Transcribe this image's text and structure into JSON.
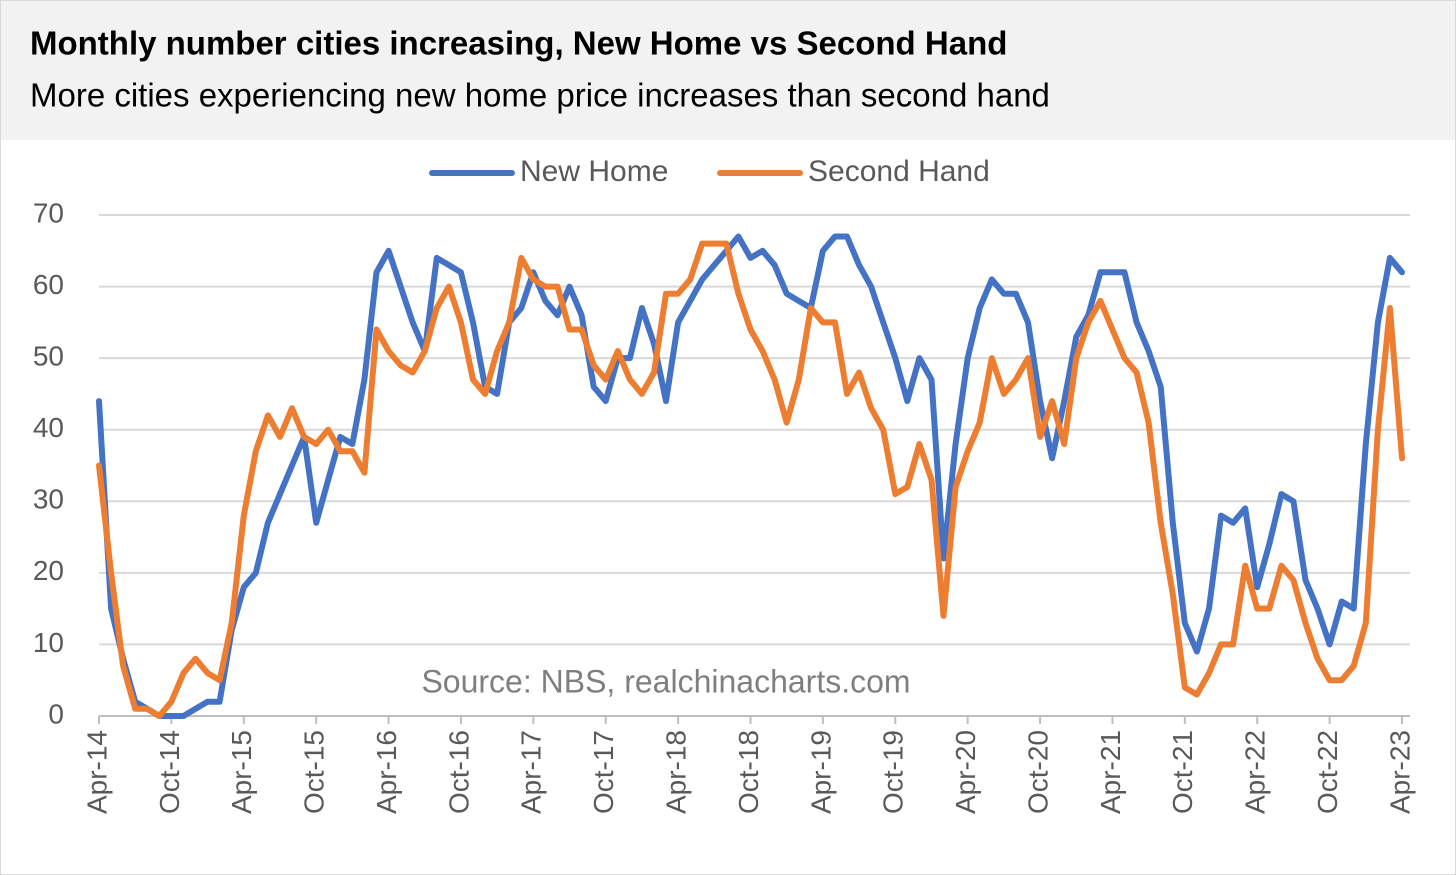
{
  "chart_data": {
    "type": "line",
    "title": "Monthly number cities increasing, New Home vs Second Hand",
    "subtitle": "More cities experiencing new home price increases than second hand",
    "annotation": "Source: NBS, realchinacharts.com",
    "categories": [
      "Apr-14",
      null,
      null,
      null,
      null,
      null,
      "Oct-14",
      null,
      null,
      null,
      null,
      null,
      "Apr-15",
      null,
      null,
      null,
      null,
      null,
      "Oct-15",
      null,
      null,
      null,
      null,
      null,
      "Apr-16",
      null,
      null,
      null,
      null,
      null,
      "Oct-16",
      null,
      null,
      null,
      null,
      null,
      "Apr-17",
      null,
      null,
      null,
      null,
      null,
      "Oct-17",
      null,
      null,
      null,
      null,
      null,
      "Apr-18",
      null,
      null,
      null,
      null,
      null,
      "Oct-18",
      null,
      null,
      null,
      null,
      null,
      "Apr-19",
      null,
      null,
      null,
      null,
      null,
      "Oct-19",
      null,
      null,
      null,
      null,
      null,
      "Apr-20",
      null,
      null,
      null,
      null,
      null,
      "Oct-20",
      null,
      null,
      null,
      null,
      null,
      "Apr-21",
      null,
      null,
      null,
      null,
      null,
      "Oct-21",
      null,
      null,
      null,
      null,
      null,
      "Apr-22",
      null,
      null,
      null,
      null,
      null,
      "Oct-22",
      null,
      null,
      null,
      null,
      null,
      "Apr-23"
    ],
    "series": [
      {
        "name": "New Home",
        "color": "#4472c4",
        "values": [
          44,
          15,
          8,
          2,
          1,
          0,
          0,
          0,
          1,
          2,
          2,
          12,
          18,
          20,
          27,
          31,
          35,
          39,
          27,
          33,
          39,
          38,
          47,
          62,
          65,
          60,
          55,
          51,
          64,
          63,
          62,
          55,
          46,
          45,
          55,
          57,
          62,
          58,
          56,
          60,
          56,
          46,
          44,
          50,
          50,
          57,
          52,
          44,
          55,
          58,
          61,
          63,
          65,
          67,
          64,
          65,
          63,
          59,
          58,
          57,
          65,
          67,
          67,
          63,
          60,
          55,
          50,
          44,
          50,
          47,
          22,
          38,
          50,
          57,
          61,
          59,
          59,
          55,
          44,
          36,
          44,
          53,
          56,
          62,
          62,
          62,
          55,
          51,
          46,
          27,
          13,
          9,
          15,
          28,
          27,
          29,
          18,
          24,
          31,
          30,
          19,
          15,
          10,
          16,
          15,
          38,
          55,
          64,
          62
        ]
      },
      {
        "name": "Second Hand",
        "color": "#ed7d31",
        "values": [
          35,
          20,
          7,
          1,
          1,
          0,
          2,
          6,
          8,
          6,
          5,
          13,
          28,
          37,
          42,
          39,
          43,
          39,
          38,
          40,
          37,
          37,
          34,
          54,
          51,
          49,
          48,
          51,
          57,
          60,
          55,
          47,
          45,
          51,
          55,
          64,
          61,
          60,
          60,
          54,
          54,
          49,
          47,
          51,
          47,
          45,
          48,
          59,
          59,
          61,
          66,
          66,
          66,
          59,
          54,
          51,
          47,
          41,
          47,
          57,
          55,
          55,
          45,
          48,
          43,
          40,
          31,
          32,
          38,
          33,
          14,
          32,
          37,
          41,
          50,
          45,
          47,
          50,
          39,
          44,
          38,
          50,
          55,
          58,
          54,
          50,
          48,
          41,
          27,
          17,
          4,
          3,
          6,
          10,
          10,
          21,
          15,
          15,
          21,
          19,
          13,
          8,
          5,
          5,
          7,
          13,
          40,
          57,
          36
        ]
      }
    ],
    "ylim": [
      0,
      70
    ],
    "yticks": [
      0,
      10,
      20,
      30,
      40,
      50,
      60,
      70
    ],
    "grid": true,
    "legend": "top"
  }
}
